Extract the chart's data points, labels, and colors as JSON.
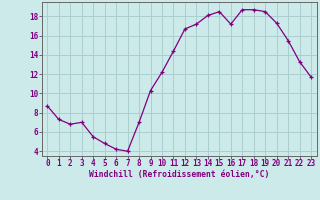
{
  "x": [
    0,
    1,
    2,
    3,
    4,
    5,
    6,
    7,
    8,
    9,
    10,
    11,
    12,
    13,
    14,
    15,
    16,
    17,
    18,
    19,
    20,
    21,
    22,
    23
  ],
  "y": [
    8.7,
    7.3,
    6.8,
    7.0,
    5.5,
    4.8,
    4.2,
    4.0,
    7.0,
    10.3,
    12.2,
    14.4,
    16.7,
    17.2,
    18.1,
    18.5,
    17.2,
    18.7,
    18.7,
    18.5,
    17.3,
    15.5,
    13.3,
    11.7
  ],
  "line_color": "#800080",
  "marker": "+",
  "bg_color": "#cceaea",
  "grid_color": "#aacfcf",
  "xlabel": "Windchill (Refroidissement éolien,°C)",
  "yticks": [
    4,
    6,
    8,
    10,
    12,
    14,
    16,
    18
  ],
  "xticks": [
    0,
    1,
    2,
    3,
    4,
    5,
    6,
    7,
    8,
    9,
    10,
    11,
    12,
    13,
    14,
    15,
    16,
    17,
    18,
    19,
    20,
    21,
    22,
    23
  ],
  "ylim": [
    3.5,
    19.5
  ],
  "xlim": [
    -0.5,
    23.5
  ],
  "spine_color": "#555555",
  "tick_color": "#800080",
  "label_color": "#800080"
}
